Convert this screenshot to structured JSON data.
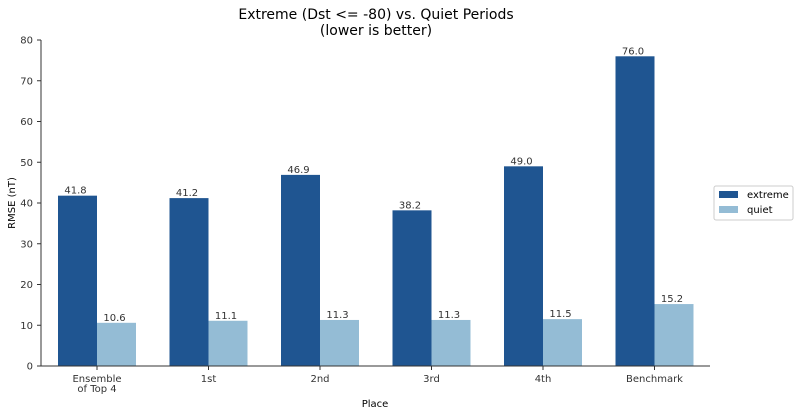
{
  "chart_data": {
    "type": "bar",
    "title": "Extreme (Dst <= -80) vs. Quiet Periods",
    "subtitle": "(lower is better)",
    "xlabel": "Place",
    "ylabel": "RMSE (nT)",
    "categories": [
      [
        "Ensemble",
        "of Top 4"
      ],
      [
        "1st"
      ],
      [
        "2nd"
      ],
      [
        "3rd"
      ],
      [
        "4th"
      ],
      [
        "Benchmark"
      ]
    ],
    "series": [
      {
        "name": "extreme",
        "color": "#1f5591",
        "values": [
          41.8,
          41.2,
          46.9,
          38.2,
          49.0,
          76.0
        ],
        "labels": [
          "41.8",
          "41.2",
          "46.9",
          "38.2",
          "49.0",
          "76.0"
        ]
      },
      {
        "name": "quiet",
        "color": "#94bcd5",
        "values": [
          10.6,
          11.1,
          11.3,
          11.3,
          11.5,
          15.2
        ],
        "labels": [
          "10.6",
          "11.1",
          "11.3",
          "11.3",
          "11.5",
          "15.2"
        ]
      }
    ],
    "ylim": [
      0,
      80
    ],
    "yticks": [
      0,
      10,
      20,
      30,
      40,
      50,
      60,
      70,
      80
    ],
    "grid": false,
    "legend_position": "right"
  }
}
